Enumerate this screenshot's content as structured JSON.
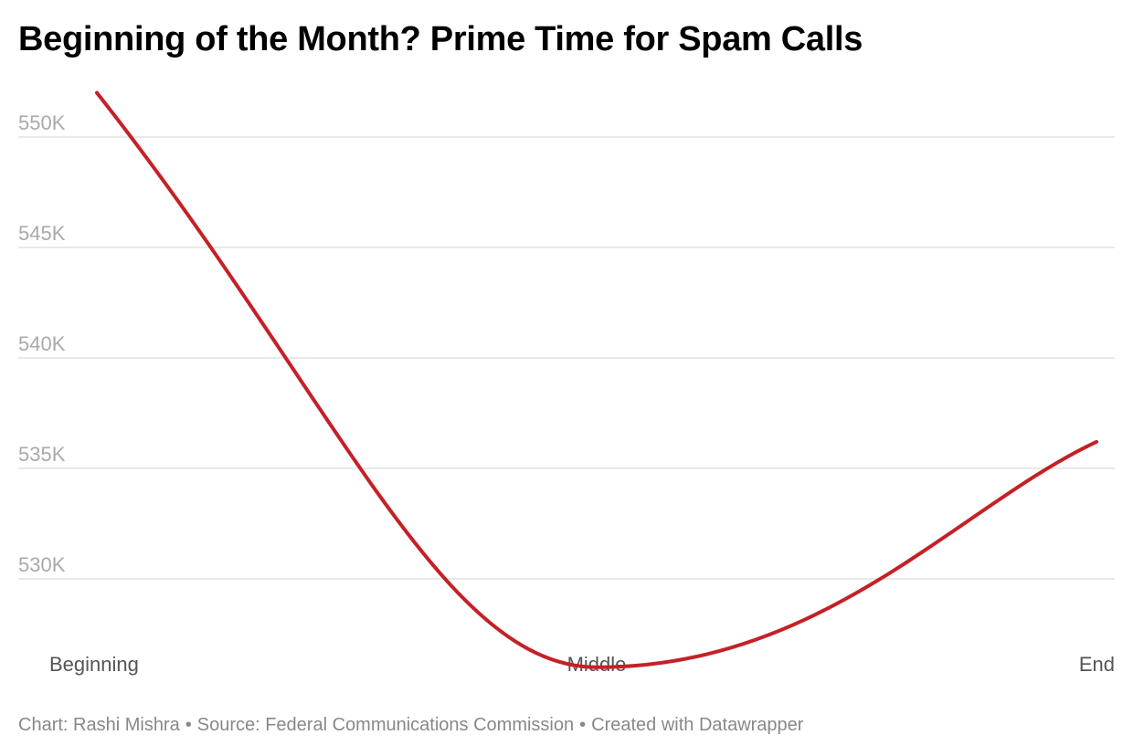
{
  "chart_data": {
    "type": "line",
    "title": "Beginning of the Month? Prime Time for Spam Calls",
    "xlabel": "",
    "ylabel": "",
    "categories": [
      "Beginning",
      "Middle",
      "End"
    ],
    "series": [
      {
        "name": "Spam calls",
        "values": [
          552000,
          526000,
          536200
        ]
      }
    ],
    "ylim": [
      526000,
      553000
    ],
    "yticks": [
      530000,
      535000,
      540000,
      545000,
      550000
    ],
    "ytick_labels": [
      "530K",
      "535K",
      "540K",
      "545K",
      "550K"
    ],
    "grid": true,
    "line_color": "#c42127",
    "grid_color": "#e2e2e2",
    "tick_color": "#aaaaaa",
    "xtick_color": "#555555"
  },
  "footer": {
    "author": "Chart: Rashi Mishra",
    "source": "Source: Federal Communications Commission",
    "tool": "Created with Datawrapper",
    "separator": "•"
  }
}
